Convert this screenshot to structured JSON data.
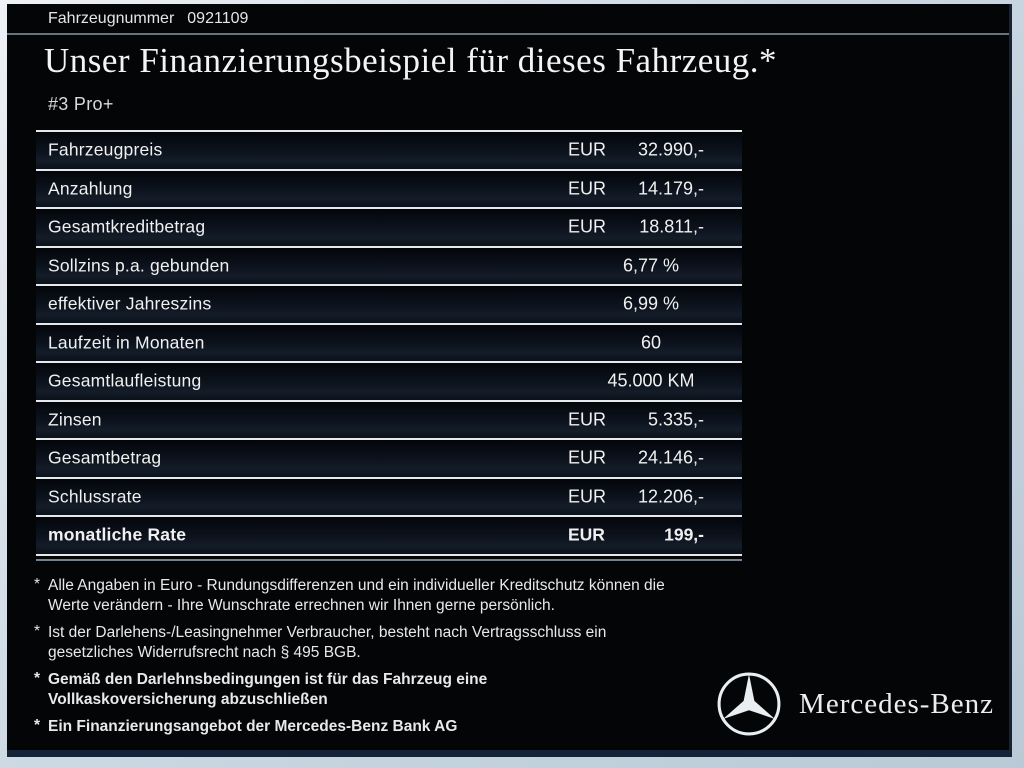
{
  "vehicle": {
    "number_label": "Fahrzeugnummer",
    "number_value": "0921109",
    "model": "#3 Pro+"
  },
  "header": {
    "title": "Unser Finanzierungsbeispiel für dieses Fahrzeug.*"
  },
  "table": {
    "rows": [
      {
        "label": "Fahrzeugpreis",
        "currency": "EUR",
        "amount": "32.990,-",
        "emphasis": false
      },
      {
        "label": "Anzahlung",
        "currency": "EUR",
        "amount": "14.179,-",
        "emphasis": false
      },
      {
        "label": "Gesamtkreditbetrag",
        "currency": "EUR",
        "amount": "18.811,-",
        "emphasis": false
      },
      {
        "label": "Sollzins p.a. gebunden",
        "currency": "",
        "amount": "6,77 %",
        "emphasis": false
      },
      {
        "label": "effektiver Jahreszins",
        "currency": "",
        "amount": "6,99 %",
        "emphasis": false
      },
      {
        "label": "Laufzeit in Monaten",
        "currency": "",
        "amount": "60",
        "emphasis": false
      },
      {
        "label": "Gesamtlaufleistung",
        "currency": "",
        "amount": "45.000 KM",
        "emphasis": false
      },
      {
        "label": "Zinsen",
        "currency": "EUR",
        "amount": "5.335,-",
        "emphasis": false
      },
      {
        "label": "Gesamtbetrag",
        "currency": "EUR",
        "amount": "24.146,-",
        "emphasis": false
      },
      {
        "label": "Schlussrate",
        "currency": "EUR",
        "amount": "12.206,-",
        "emphasis": false
      },
      {
        "label": "monatliche Rate",
        "currency": "EUR",
        "amount": "199,-",
        "emphasis": true
      }
    ]
  },
  "footnotes": [
    {
      "bold": false,
      "lines": [
        "Alle Angaben in Euro - Rundungsdifferenzen und ein individueller Kreditschutz können die",
        "Werte verändern - Ihre Wunschrate errechnen wir Ihnen gerne persönlich."
      ]
    },
    {
      "bold": false,
      "lines": [
        "Ist der Darlehens-/Leasingnehmer Verbraucher, besteht nach Vertragsschluss ein",
        "gesetzliches Widerrufsrecht nach § 495 BGB."
      ]
    },
    {
      "bold": true,
      "lines": [
        "Gemäß den Darlehnsbedingungen ist für das Fahrzeug eine",
        "Vollkaskoversicherung abzuschließen"
      ]
    },
    {
      "bold": true,
      "lines": [
        "Ein Finanzierungsangebot der Mercedes-Benz Bank AG"
      ]
    }
  ],
  "brand": {
    "wordmark": "Mercedes-Benz",
    "logo_icon": "mercedes-star-icon"
  },
  "colors": {
    "separator": "#e6e9ec",
    "frame-navy": "#152339",
    "slide-bg": "#040507",
    "text-main": "#f2f2f2"
  }
}
